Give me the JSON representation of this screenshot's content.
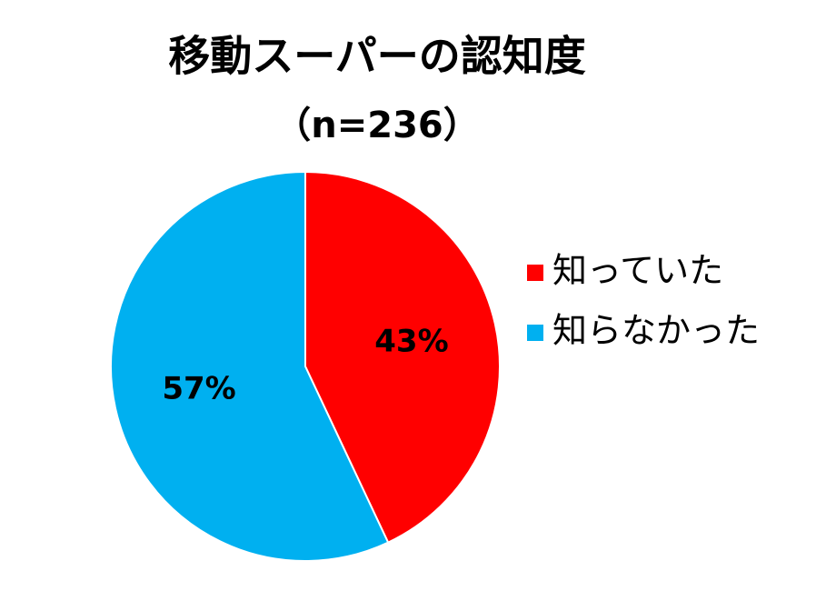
{
  "chart_data": {
    "type": "pie",
    "title": "移動スーパーの認知度",
    "subtitle": "（n=236）",
    "categories": [
      "知っていた",
      "知らなかった"
    ],
    "values": [
      43,
      57
    ],
    "value_labels": [
      "43%",
      "57%"
    ],
    "colors": [
      "#ff0000",
      "#00b0f0"
    ],
    "legend": "right"
  }
}
